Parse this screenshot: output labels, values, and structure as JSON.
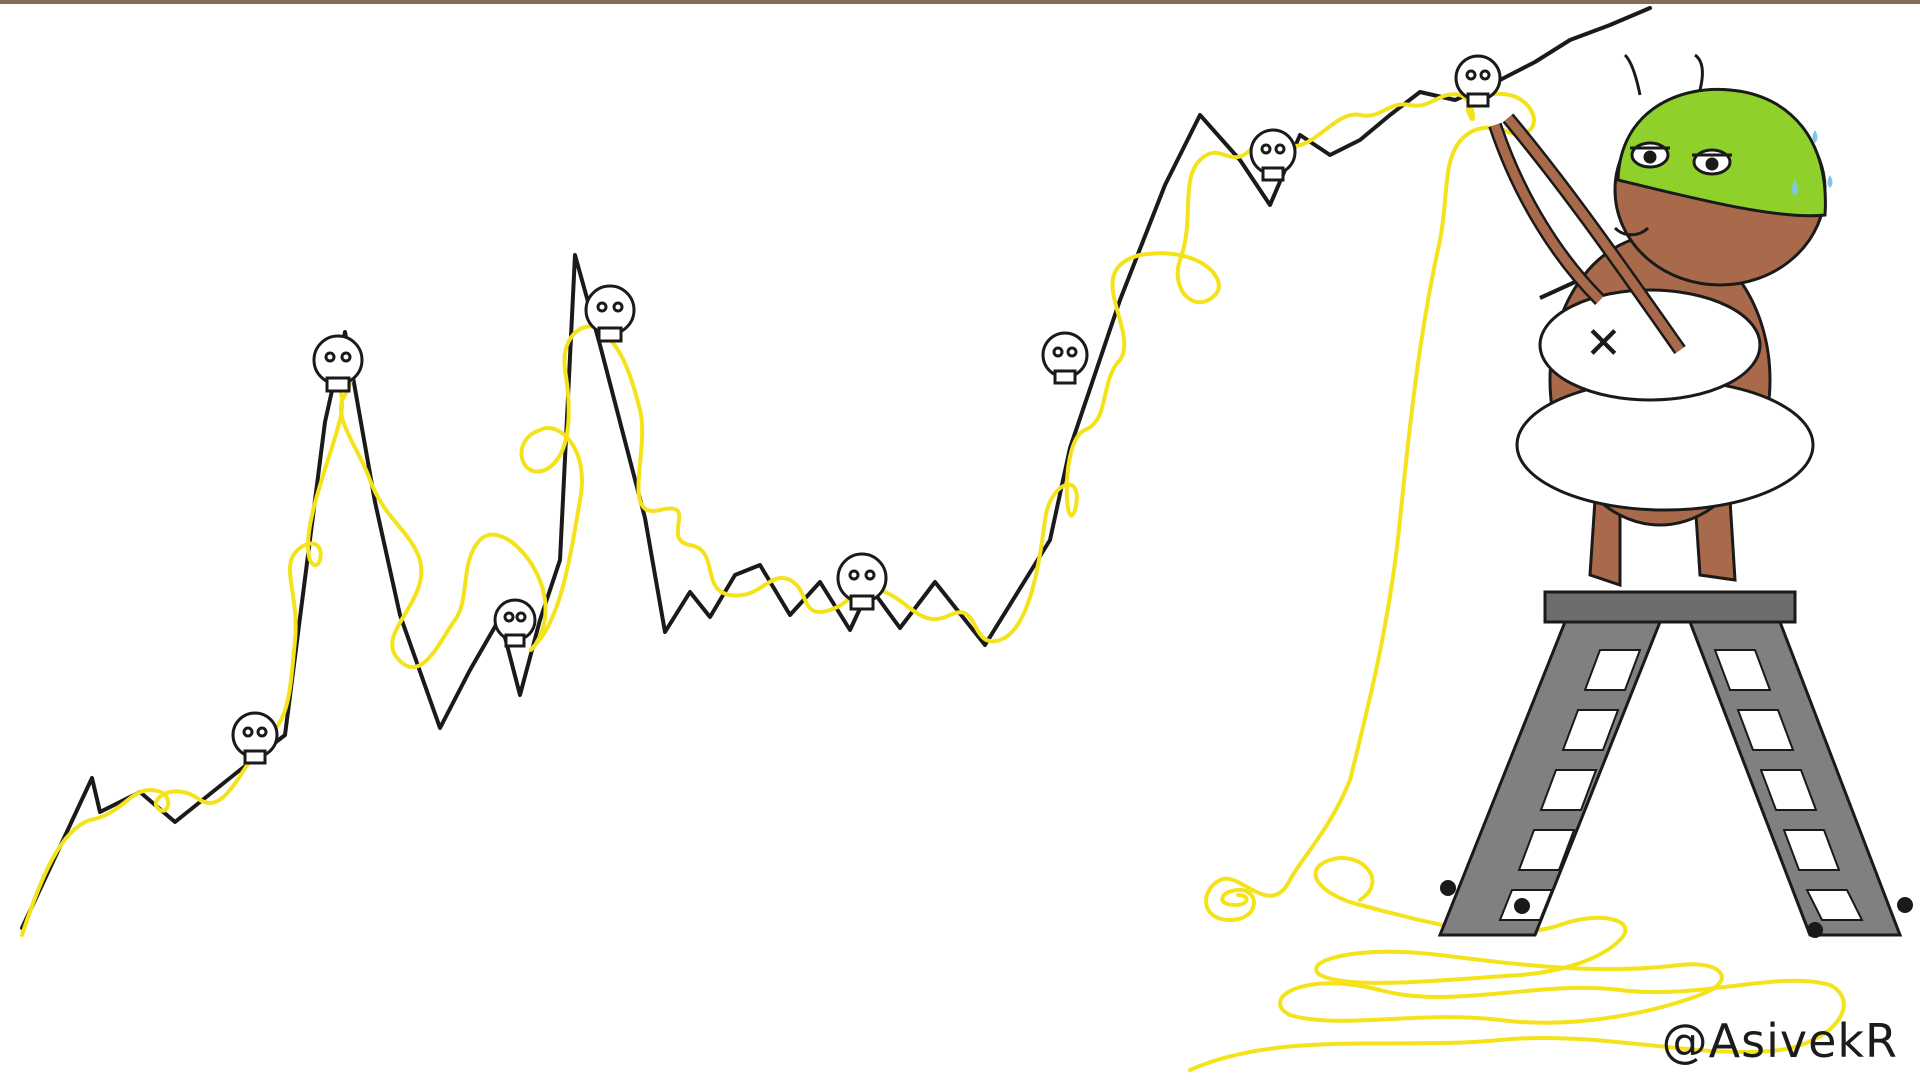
{
  "signature": "@AsivekR",
  "icons": [
    "skull-icon",
    "ladder-icon",
    "character-figure"
  ],
  "colors": {
    "background": "#ffffff",
    "price_line": "#1a1a1a",
    "rope": "#f4e21b",
    "helmet": "#8fd12a",
    "skin": "#a86a4a",
    "shirt": "#ffffff",
    "ladder": "#7a7a7a",
    "top_rule": "#8a6a58"
  }
}
